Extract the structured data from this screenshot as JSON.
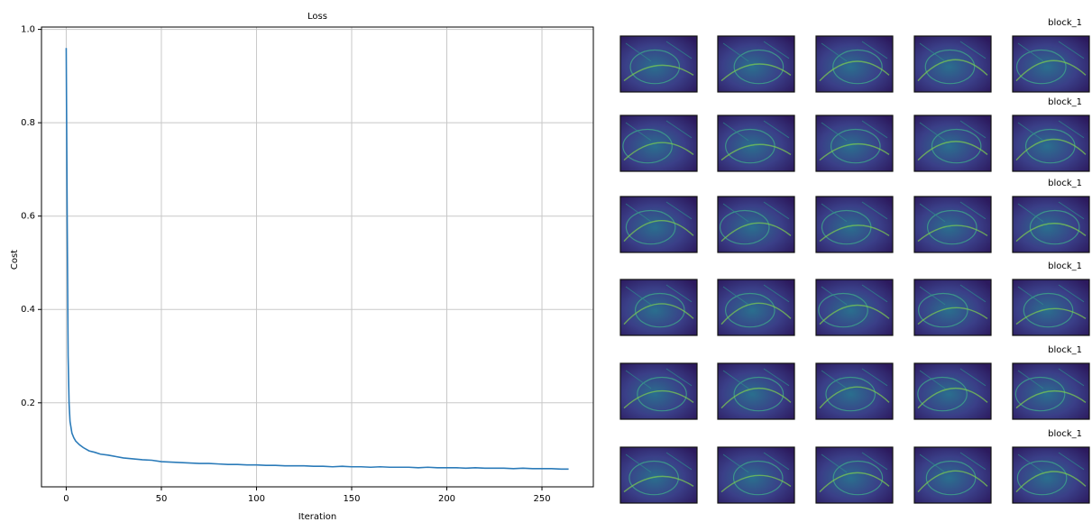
{
  "chart_data": {
    "type": "line",
    "title": "Loss",
    "x_label": "Iteration",
    "y_label": "Cost",
    "x": [
      0,
      0.5,
      1,
      1.5,
      2,
      3,
      4,
      5,
      7,
      9,
      12,
      15,
      18,
      22,
      26,
      30,
      35,
      40,
      45,
      50,
      55,
      60,
      65,
      70,
      75,
      80,
      85,
      90,
      95,
      100,
      105,
      110,
      115,
      120,
      125,
      130,
      135,
      140,
      145,
      150,
      155,
      160,
      165,
      170,
      175,
      180,
      185,
      190,
      195,
      200,
      205,
      210,
      215,
      220,
      225,
      230,
      235,
      240,
      245,
      250,
      255,
      260,
      264
    ],
    "series": [
      {
        "name": "Loss",
        "color": "#2b7bb9",
        "values": [
          0.96,
          0.6,
          0.3,
          0.2,
          0.16,
          0.135,
          0.125,
          0.118,
          0.11,
          0.104,
          0.097,
          0.094,
          0.09,
          0.088,
          0.085,
          0.082,
          0.08,
          0.078,
          0.077,
          0.074,
          0.073,
          0.072,
          0.071,
          0.07,
          0.07,
          0.069,
          0.068,
          0.068,
          0.067,
          0.067,
          0.066,
          0.066,
          0.065,
          0.065,
          0.065,
          0.064,
          0.064,
          0.063,
          0.064,
          0.063,
          0.063,
          0.062,
          0.063,
          0.062,
          0.062,
          0.062,
          0.061,
          0.062,
          0.061,
          0.061,
          0.061,
          0.06,
          0.061,
          0.06,
          0.06,
          0.06,
          0.059,
          0.06,
          0.059,
          0.059,
          0.059,
          0.058,
          0.058
        ]
      }
    ],
    "xlim": [
      -13,
      277
    ],
    "ylim": [
      0.02,
      1.005
    ],
    "xticks": [
      0,
      50,
      100,
      150,
      200,
      250
    ],
    "yticks": [
      0.2,
      0.4,
      0.6,
      0.8,
      {
        "value": 1,
        "label": "1.0"
      }
    ],
    "grid": true
  },
  "feature_maps": {
    "row_labels": [
      "block_1",
      "block_1",
      "block_1",
      "block_1",
      "block_1",
      "block_1"
    ]
  }
}
